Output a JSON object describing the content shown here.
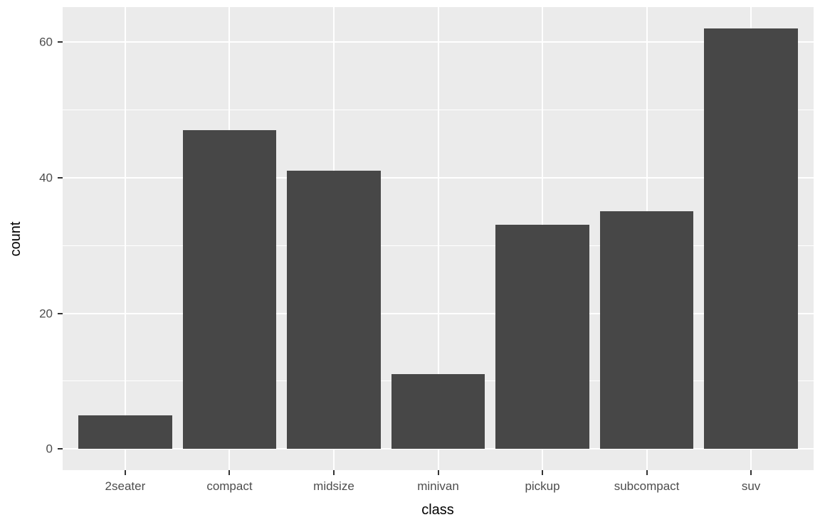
{
  "chart_data": {
    "type": "bar",
    "title": "",
    "xlabel": "class",
    "ylabel": "count",
    "categories": [
      "2seater",
      "compact",
      "midsize",
      "minivan",
      "pickup",
      "subcompact",
      "suv"
    ],
    "values": [
      5,
      47,
      41,
      11,
      33,
      35,
      62
    ],
    "y_major_ticks": [
      0,
      20,
      40,
      60
    ],
    "y_minor_ticks": [
      10,
      30,
      50
    ],
    "ylim": [
      -3.1,
      65.1
    ],
    "grid": "on",
    "legend": "none",
    "bar_width_fraction": 0.9,
    "colors": {
      "bar_fill": "#474747",
      "panel_background": "#EBEBEB",
      "gridline": "#FFFFFF",
      "tick_label": "#4D4D4D",
      "axis_title": "#000000",
      "tick_mark": "#333333",
      "figure_background": "#FFFFFF"
    }
  }
}
